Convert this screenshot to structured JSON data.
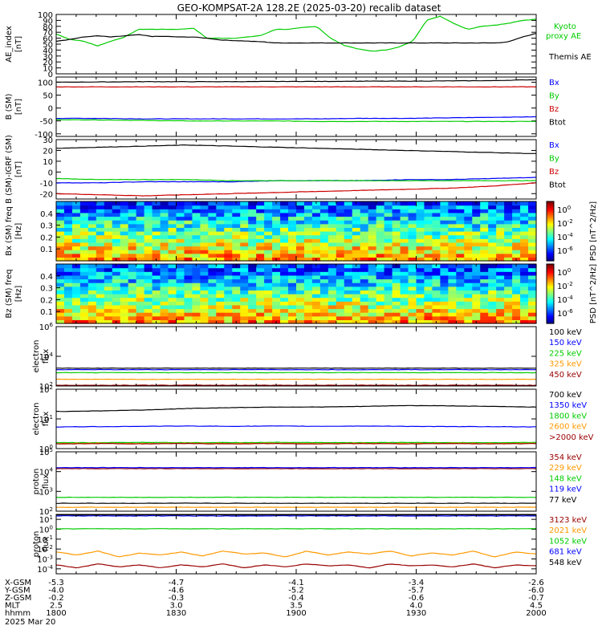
{
  "title": "GEO-KOMPSAT-2A 128.2E (2025-03-20) recalib dataset",
  "chart_data": [
    {
      "type": "line",
      "panel": "ae",
      "ylabel": "AE_index [nT]",
      "ylim": [
        0,
        100
      ],
      "yticks": [
        "0",
        "10",
        "20",
        "30",
        "40",
        "50",
        "60",
        "70",
        "80",
        "90",
        "100"
      ],
      "legend": [
        "Kyoto proxy AE",
        "Themis AE"
      ],
      "legend_colors": [
        "#00cc00",
        "#000000"
      ],
      "series": [
        {
          "name": "Kyoto proxy AE",
          "color": "#00cc00",
          "values": [
            67,
            58,
            55,
            47,
            55,
            62,
            75,
            75,
            75,
            75,
            77,
            60,
            60,
            60,
            62,
            65,
            75,
            75,
            78,
            80,
            60,
            48,
            42,
            38,
            40,
            45,
            55,
            90,
            97,
            85,
            75,
            80,
            82,
            85,
            90,
            92
          ]
        },
        {
          "name": "Themis AE",
          "color": "#000000",
          "values": [
            55,
            58,
            62,
            64,
            62,
            64,
            66,
            63,
            63,
            62,
            62,
            60,
            57,
            56,
            55,
            54,
            52,
            52,
            52,
            52,
            52,
            52,
            52,
            52,
            52,
            52,
            52,
            52,
            52,
            52,
            52,
            52,
            52,
            54,
            62,
            68
          ]
        }
      ]
    },
    {
      "type": "line",
      "panel": "b_sm",
      "ylabel": "B (SM) [nT]",
      "ylim": [
        -110,
        120
      ],
      "yticks": [
        "-100",
        "-50",
        "0",
        "50",
        "100"
      ],
      "legend": [
        "Bx",
        "By",
        "Bz",
        "Btot"
      ],
      "legend_colors": [
        "#0000ff",
        "#00cc00",
        "#cc0000",
        "#000000"
      ],
      "series": [
        {
          "name": "Bx",
          "color": "#0000ff",
          "values": [
            -40,
            -40,
            -42,
            -42,
            -42,
            -42,
            -42,
            -40,
            -40,
            -38,
            -36,
            -34
          ]
        },
        {
          "name": "By",
          "color": "#00cc00",
          "values": [
            -45,
            -46,
            -48,
            -50,
            -50,
            -50,
            -52,
            -52,
            -52,
            -52,
            -52,
            -52
          ]
        },
        {
          "name": "Bz",
          "color": "#cc0000",
          "values": [
            82,
            82,
            82,
            82,
            82,
            82,
            82,
            82,
            82,
            82,
            82,
            82
          ]
        },
        {
          "name": "Btot",
          "color": "#000000",
          "values": [
            100,
            101,
            102,
            102,
            102,
            103,
            103,
            104,
            104,
            105,
            106,
            110
          ]
        }
      ]
    },
    {
      "type": "line",
      "panel": "b_minus_igrf",
      "ylabel": "B (SM)-IGRF (SM) [nT]",
      "ylim": [
        -25,
        30
      ],
      "yticks": [
        "-20",
        "-10",
        "0",
        "10",
        "20",
        "30"
      ],
      "legend": [
        "Bx",
        "By",
        "Bz",
        "Btot"
      ],
      "legend_colors": [
        "#0000ff",
        "#00cc00",
        "#cc0000",
        "#000000"
      ],
      "series": [
        {
          "name": "Bx",
          "color": "#0000ff",
          "values": [
            -10,
            -10,
            -9,
            -9,
            -9,
            -8,
            -8,
            -8,
            -7,
            -7,
            -6,
            -5
          ]
        },
        {
          "name": "By",
          "color": "#00cc00",
          "values": [
            -6,
            -7,
            -7,
            -7,
            -8,
            -8,
            -8,
            -8,
            -8,
            -8,
            -8,
            -8
          ]
        },
        {
          "name": "Bz",
          "color": "#cc0000",
          "values": [
            -20,
            -21,
            -22,
            -21,
            -20,
            -19,
            -18,
            -17,
            -16,
            -15,
            -13,
            -10
          ]
        },
        {
          "name": "Btot",
          "color": "#000000",
          "values": [
            22,
            23,
            24,
            25,
            24,
            23,
            22,
            21,
            20,
            19,
            18,
            17
          ]
        }
      ]
    },
    {
      "type": "heatmap",
      "panel": "bx_spectrogram",
      "ylabel": "Bx (SM) freq [Hz]",
      "ylim": [
        0,
        0.5
      ],
      "yticks": [
        "0.1",
        "0.2",
        "0.3",
        "0.4"
      ],
      "colorbar_label": "PSD [nT^2/Hz]",
      "colorbar_ticks": [
        "10^0",
        "10^-2",
        "10^-4",
        "10^-6"
      ]
    },
    {
      "type": "heatmap",
      "panel": "bz_spectrogram",
      "ylabel": "Bz (SM) freq [Hz]",
      "ylim": [
        0,
        0.5
      ],
      "yticks": [
        "0.1",
        "0.2",
        "0.3",
        "0.4"
      ],
      "colorbar_label": "PSD [nT^2/Hz]",
      "colorbar_ticks": [
        "10^0",
        "10^-2",
        "10^-4",
        "10^-6"
      ]
    },
    {
      "type": "line",
      "panel": "electron_low",
      "ylabel": "electron flux",
      "yscale": "log",
      "ylim_exp": [
        2,
        6
      ],
      "yticks": [
        "10^2",
        "10^4",
        "10^6"
      ],
      "legend": [
        "100 keV",
        "150 keV",
        "225 keV",
        "325 keV",
        "450 keV"
      ],
      "legend_colors": [
        "#000000",
        "#0000ff",
        "#00cc00",
        "#ff9900",
        "#990000"
      ],
      "series": [
        {
          "name": "100 keV",
          "color": "#000000",
          "values": [
            3.2,
            3.2,
            3.2,
            3.2,
            3.2,
            3.2,
            3.2,
            3.2,
            3.2,
            3.2,
            3.2,
            3.2
          ]
        },
        {
          "name": "150 keV",
          "color": "#0000ff",
          "values": [
            3.1,
            3.1,
            3.1,
            3.1,
            3.1,
            3.1,
            3.1,
            3.1,
            3.1,
            3.1,
            3.1,
            3.1
          ]
        },
        {
          "name": "225 keV",
          "color": "#00cc00",
          "values": [
            2.9,
            2.9,
            2.9,
            2.9,
            2.9,
            2.9,
            2.9,
            2.9,
            2.9,
            2.9,
            2.9,
            2.9
          ]
        },
        {
          "name": "325 keV",
          "color": "#ff9900",
          "values": [
            2.45,
            2.45,
            2.45,
            2.45,
            2.45,
            2.45,
            2.45,
            2.45,
            2.45,
            2.45,
            2.45,
            2.45
          ]
        },
        {
          "name": "450 keV",
          "color": "#990000",
          "values": [
            2.05,
            2.05,
            2.05,
            2.05,
            2.05,
            2.05,
            2.05,
            2.05,
            2.05,
            2.05,
            2.05,
            2.05
          ]
        }
      ]
    },
    {
      "type": "line",
      "panel": "electron_high",
      "ylabel": "electron flux",
      "yscale": "log",
      "ylim_exp": [
        0,
        2
      ],
      "yticks": [
        "10^0",
        "10^1",
        "10^2"
      ],
      "legend": [
        "700 keV",
        "1350 keV",
        "1800 keV",
        "2600 keV",
        ">2000 keV"
      ],
      "legend_colors": [
        "#000000",
        "#0000ff",
        "#00cc00",
        "#ff9900",
        "#990000"
      ],
      "series": [
        {
          "name": "700 keV",
          "color": "#000000",
          "values": [
            1.25,
            1.27,
            1.3,
            1.35,
            1.38,
            1.4,
            1.4,
            1.42,
            1.45,
            1.44,
            1.42,
            1.4
          ]
        },
        {
          "name": "1350 keV",
          "color": "#0000ff",
          "values": [
            0.73,
            0.74,
            0.75,
            0.76,
            0.75,
            0.76,
            0.75,
            0.76,
            0.75,
            0.74,
            0.74,
            0.73
          ]
        },
        {
          "name": "1800 keV",
          "color": "#00cc00",
          "values": [
            0.2,
            0.2,
            0.21,
            0.2,
            0.2,
            0.21,
            0.2,
            0.2,
            0.21,
            0.2,
            0.2,
            0.21
          ]
        },
        {
          "name": "2600 keV",
          "color": "#ff9900",
          "values": [
            0.17,
            0.18,
            0.17,
            0.18,
            0.17,
            0.18,
            0.17,
            0.18,
            0.17,
            0.18,
            0.17,
            0.18
          ]
        },
        {
          "name": ">2000 keV",
          "color": "#990000",
          "values": [
            0.16,
            0.17,
            0.16,
            0.17,
            0.16,
            0.17,
            0.16,
            0.17,
            0.16,
            0.17,
            0.16,
            0.17
          ]
        }
      ]
    },
    {
      "type": "line",
      "panel": "proton_low",
      "ylabel": "proton flux",
      "yscale": "log",
      "ylim_exp": [
        2,
        5
      ],
      "yticks": [
        "10^2",
        "10^3",
        "10^4",
        "10^5"
      ],
      "legend": [
        "354 keV",
        "229 keV",
        "148 keV",
        "119 keV",
        "77 keV"
      ],
      "legend_colors": [
        "#990000",
        "#ff9900",
        "#00cc00",
        "#0000ff",
        "#000000"
      ],
      "series": [
        {
          "name": "354 keV",
          "color": "#990000",
          "values": [
            4.15,
            4.15,
            4.15,
            4.15,
            4.15,
            4.15,
            4.15,
            4.15,
            4.15,
            4.15,
            4.15,
            4.15
          ]
        },
        {
          "name": "229 keV",
          "color": "#ff9900",
          "values": [
            2.2,
            2.2,
            2.2,
            2.2,
            2.2,
            2.2,
            2.2,
            2.2,
            2.2,
            2.2,
            2.2,
            2.2
          ]
        },
        {
          "name": "148 keV",
          "color": "#00cc00",
          "values": [
            2.7,
            2.7,
            2.7,
            2.7,
            2.7,
            2.7,
            2.7,
            2.7,
            2.7,
            2.7,
            2.7,
            2.7
          ]
        },
        {
          "name": "119 keV",
          "color": "#0000ff",
          "values": [
            4.2,
            4.2,
            4.2,
            4.2,
            4.2,
            4.2,
            4.2,
            4.2,
            4.2,
            4.2,
            4.2,
            4.2
          ]
        },
        {
          "name": "77 keV",
          "color": "#000000",
          "values": [
            2.4,
            2.4,
            2.4,
            2.4,
            2.4,
            2.4,
            2.4,
            2.4,
            2.4,
            2.4,
            2.4,
            2.4
          ]
        }
      ]
    },
    {
      "type": "line",
      "panel": "proton_high",
      "ylabel": "proton flux",
      "yscale": "log",
      "ylim_exp": [
        -4.5,
        1.5
      ],
      "yticks": [
        "10^-4",
        "10^-3",
        "10^-2",
        "10^-1",
        "10^0",
        "10^1"
      ],
      "legend": [
        "3123 keV",
        "2021 keV",
        "1052 keV",
        "681 keV",
        "548 keV"
      ],
      "legend_colors": [
        "#990000",
        "#ff9900",
        "#00cc00",
        "#0000ff",
        "#000000"
      ],
      "series": [
        {
          "name": "3123 keV",
          "color": "#990000",
          "values": [
            -3.6,
            -3.9,
            -3.5,
            -3.8,
            -3.6,
            -3.9,
            -3.6,
            -3.8,
            -3.5,
            -3.9,
            -3.6,
            -3.8,
            -3.5,
            -3.7,
            -3.6,
            -3.9,
            -3.5,
            -3.7,
            -3.6,
            -3.8,
            -3.5,
            -3.9,
            -3.6,
            -3.7
          ]
        },
        {
          "name": "2021 keV",
          "color": "#ff9900",
          "values": [
            -2.3,
            -2.6,
            -2.2,
            -2.8,
            -2.4,
            -2.6,
            -2.3,
            -2.7,
            -2.2,
            -2.5,
            -2.4,
            -2.8,
            -2.2,
            -2.6,
            -2.3,
            -2.5,
            -2.2,
            -2.7,
            -2.4,
            -2.6,
            -2.2,
            -2.8,
            -2.3,
            -2.5
          ]
        },
        {
          "name": "1052 keV",
          "color": "#00cc00",
          "values": [
            0.05,
            0.05,
            0.05,
            0.05,
            0.05,
            0.05,
            0.05,
            0.05,
            0.05,
            0.05,
            0.05,
            0.05
          ]
        },
        {
          "name": "681 keV",
          "color": "#0000ff",
          "values": [
            1.35,
            1.35,
            1.35,
            1.35,
            1.35,
            1.35,
            1.35,
            1.35,
            1.35,
            1.35,
            1.35,
            1.35
          ]
        },
        {
          "name": "548 keV",
          "color": "#000000",
          "values": [
            1.45,
            1.45,
            1.45,
            1.45,
            1.45,
            1.45,
            1.45,
            1.45,
            1.45,
            1.45,
            1.45,
            1.45
          ]
        }
      ]
    }
  ],
  "ephemeris": {
    "rows": [
      {
        "label": "X-GSM",
        "values": [
          "-5.3",
          "-4.7",
          "-4.1",
          "-3.4",
          "-2.6"
        ]
      },
      {
        "label": "Y-GSM",
        "values": [
          "-4.0",
          "-4.6",
          "-5.2",
          "-5.7",
          "-6.0"
        ]
      },
      {
        "label": "Z-GSM",
        "values": [
          "-0.2",
          "-0.3",
          "-0.4",
          "-0.6",
          "-0.7"
        ]
      },
      {
        "label": "MLT",
        "values": [
          "2.5",
          "3.0",
          "3.5",
          "4.0",
          "4.5"
        ]
      },
      {
        "label": "hhmm",
        "values": [
          "1800",
          "1830",
          "1900",
          "1930",
          "2000"
        ]
      }
    ],
    "date": "2025 Mar 20"
  }
}
